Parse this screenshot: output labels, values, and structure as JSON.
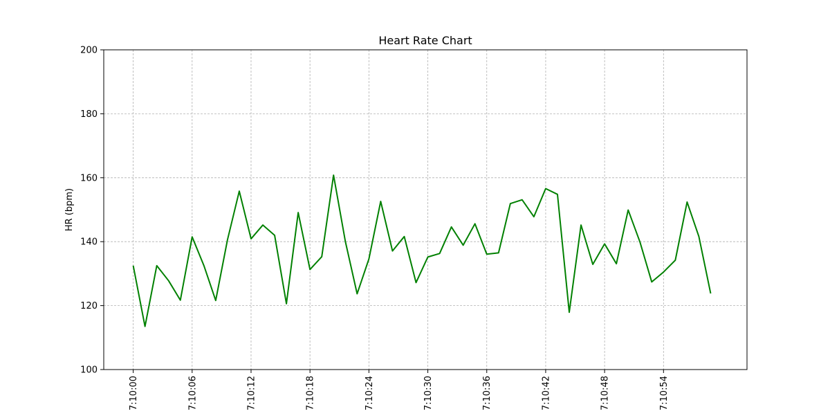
{
  "chart_data": {
    "type": "line",
    "title": "Heart Rate Chart",
    "xlabel": "",
    "ylabel": "HR (bpm)",
    "ylim": [
      100,
      200
    ],
    "yticks": [
      100,
      120,
      140,
      160,
      180,
      200
    ],
    "x_start": "7:10:00",
    "x_step_seconds": 1.2,
    "xlim_seconds": [
      -3,
      62.5
    ],
    "xticks": [
      "7:10:00",
      "7:10:06",
      "7:10:12",
      "7:10:18",
      "7:10:24",
      "7:10:30",
      "7:10:36",
      "7:10:42",
      "7:10:48",
      "7:10:54"
    ],
    "grid": true,
    "line_color": "#008000",
    "series": [
      {
        "values": [
          132.5,
          113.5,
          132.5,
          127.8,
          121.7,
          141.5,
          132.5,
          121.6,
          140.6,
          155.8,
          140.9,
          145.2,
          142.0,
          120.6,
          149.1,
          131.3,
          135.3,
          160.8,
          140.1,
          123.7,
          134.6,
          152.6,
          137.1,
          141.6,
          127.2,
          135.2,
          136.3,
          144.6,
          138.9,
          145.6,
          136.1,
          136.5,
          151.9,
          153.1,
          147.8,
          156.6,
          154.8,
          117.9,
          145.2,
          132.9,
          139.3,
          133.1,
          149.9,
          139.9,
          127.4,
          130.5,
          134.2,
          152.4,
          141.6,
          123.8
        ]
      }
    ]
  }
}
